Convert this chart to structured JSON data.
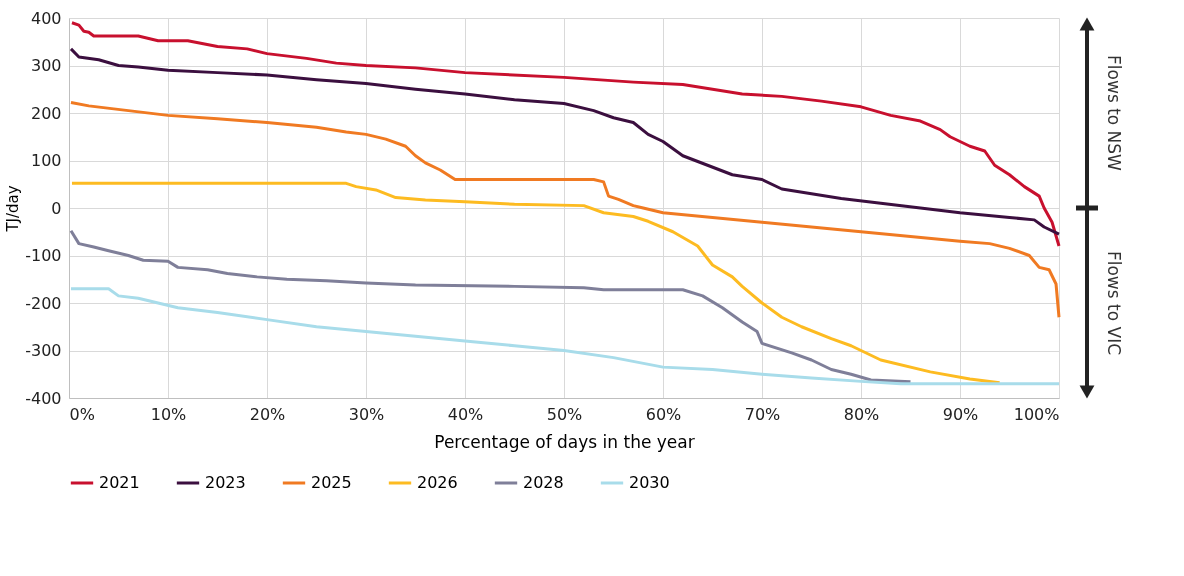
{
  "chart_data": {
    "type": "line",
    "xlabel": "Percentage of days in the year",
    "ylabel": "TJ/day",
    "xlim": [
      0,
      100
    ],
    "ylim": [
      -400,
      400
    ],
    "xticks": [
      {
        "value": 0,
        "label": "0%"
      },
      {
        "value": 10,
        "label": "10%"
      },
      {
        "value": 20,
        "label": "20%"
      },
      {
        "value": 30,
        "label": "30%"
      },
      {
        "value": 40,
        "label": "40%"
      },
      {
        "value": 50,
        "label": "50%"
      },
      {
        "value": 60,
        "label": "60%"
      },
      {
        "value": 70,
        "label": "70%"
      },
      {
        "value": 80,
        "label": "80%"
      },
      {
        "value": 90,
        "label": "90%"
      },
      {
        "value": 100,
        "label": "100%"
      }
    ],
    "yticks": [
      -400,
      -300,
      -200,
      -100,
      0,
      100,
      200,
      300,
      400
    ],
    "grid": true,
    "legend": "bottom",
    "marker": "none",
    "line_style": "solid",
    "annotations": [
      "Flows to NSW",
      "Flows to VIC"
    ],
    "series": [
      {
        "name": "2021",
        "color": "#c8102e",
        "x": [
          0.3,
          1,
          1.5,
          2,
          2.5,
          7,
          9,
          12,
          15,
          18,
          20,
          24,
          27,
          30,
          35,
          40,
          50,
          57,
          62,
          65,
          68,
          72,
          76,
          80,
          83,
          86,
          88,
          89,
          91,
          92.5,
          93.5,
          95,
          96.5,
          98,
          98.5,
          99.3,
          100
        ],
        "values": [
          390,
          385,
          372,
          370,
          362,
          362,
          352,
          352,
          340,
          335,
          325,
          315,
          305,
          300,
          295,
          285,
          275,
          265,
          260,
          250,
          240,
          235,
          225,
          213,
          195,
          183,
          165,
          150,
          130,
          120,
          90,
          70,
          45,
          25,
          0,
          -30,
          -80
        ]
      },
      {
        "name": "2023",
        "color": "#3b0f3f",
        "x": [
          0.2,
          1,
          3,
          5,
          7,
          10,
          15,
          20,
          25,
          30,
          35,
          40,
          45,
          50,
          53,
          55,
          57,
          58.5,
          60,
          62,
          64.5,
          67,
          70,
          72,
          75,
          78,
          82,
          86,
          90,
          95,
          97.5,
          98.5,
          100
        ],
        "values": [
          335,
          318,
          312,
          300,
          297,
          290,
          285,
          280,
          270,
          262,
          250,
          240,
          228,
          220,
          205,
          190,
          180,
          155,
          140,
          110,
          90,
          70,
          60,
          40,
          30,
          20,
          10,
          0,
          -10,
          -20,
          -25,
          -40,
          -55
        ]
      },
      {
        "name": "2025",
        "color": "#f07a22",
        "x": [
          0.2,
          2,
          6,
          10,
          15,
          20,
          25,
          28,
          30,
          32,
          34,
          35,
          36,
          37.5,
          39,
          53,
          54,
          54.5,
          55.5,
          57,
          58,
          60,
          65,
          70,
          75,
          80,
          85,
          90,
          93,
          95,
          97,
          98,
          99,
          99.7,
          100
        ],
        "values": [
          222,
          215,
          205,
          195,
          188,
          180,
          170,
          160,
          155,
          145,
          130,
          110,
          95,
          80,
          60,
          60,
          55,
          25,
          18,
          5,
          0,
          -10,
          -20,
          -30,
          -40,
          -50,
          -60,
          -70,
          -75,
          -85,
          -100,
          -125,
          -130,
          -160,
          -230
        ]
      },
      {
        "name": "2026",
        "color": "#fdbb21",
        "x": [
          0.3,
          28,
          29,
          31,
          33,
          36,
          40,
          45,
          52,
          54,
          57,
          58.5,
          61,
          63.5,
          65,
          67,
          68,
          70,
          72,
          74,
          77,
          79,
          82,
          87,
          91,
          94
        ],
        "values": [
          52,
          52,
          45,
          38,
          22,
          17,
          13,
          8,
          5,
          -10,
          -18,
          -28,
          -50,
          -80,
          -120,
          -145,
          -165,
          -200,
          -230,
          -250,
          -275,
          -290,
          -320,
          -345,
          -360,
          -368
        ]
      },
      {
        "name": "2028",
        "color": "#7f7f99",
        "x": [
          0.2,
          1,
          2.5,
          4,
          6,
          7.5,
          10,
          11,
          14,
          16,
          19,
          22,
          26,
          30,
          35,
          45,
          52,
          54,
          62,
          64,
          66,
          68,
          69.5,
          70,
          73,
          75,
          77,
          79,
          81,
          85
        ],
        "values": [
          -48,
          -75,
          -82,
          -90,
          -100,
          -110,
          -112,
          -125,
          -130,
          -138,
          -145,
          -150,
          -153,
          -158,
          -162,
          -165,
          -168,
          -172,
          -172,
          -185,
          -210,
          -240,
          -260,
          -285,
          -305,
          -320,
          -340,
          -350,
          -362,
          -366
        ]
      },
      {
        "name": "2030",
        "color": "#a8dcea",
        "x": [
          0.2,
          4,
          5,
          7,
          9,
          11,
          15,
          20,
          25,
          30,
          35,
          40,
          45,
          50,
          55,
          60,
          65,
          70,
          75,
          80,
          84,
          100
        ],
        "values": [
          -170,
          -170,
          -185,
          -190,
          -200,
          -210,
          -220,
          -235,
          -250,
          -260,
          -270,
          -280,
          -290,
          -300,
          -315,
          -335,
          -340,
          -350,
          -358,
          -365,
          -370,
          -370
        ]
      }
    ]
  }
}
